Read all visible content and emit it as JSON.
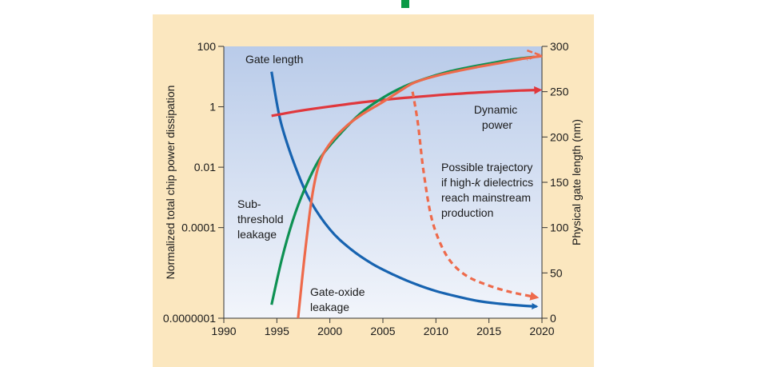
{
  "chart_data": {
    "type": "line",
    "x_ticks": [
      "1990",
      "1995",
      "2000",
      "2005",
      "2010",
      "2015",
      "2020"
    ],
    "xlim": [
      1990,
      2020
    ],
    "y_left": {
      "label": "Normalized total chip power dissipation",
      "scale": "log",
      "lim": [
        1e-07,
        100
      ],
      "ticks": [
        "100",
        "1",
        "0.01",
        "0.0001",
        "0.0000001"
      ]
    },
    "y_right": {
      "label": "Physical gate length (nm)",
      "lim": [
        0,
        300
      ],
      "ticks": [
        "0",
        "50",
        "100",
        "150",
        "200",
        "250",
        "300"
      ]
    },
    "series": [
      {
        "name": "Gate length",
        "axis": "right",
        "color": "#1763b0",
        "x": [
          1994.5,
          1995.3,
          1996.5,
          1998,
          2000,
          2002,
          2004,
          2006,
          2008,
          2010,
          2012,
          2014,
          2016,
          2018,
          2019.5
        ],
        "y": [
          272,
          220,
          175,
          133,
          98,
          76,
          60,
          48,
          38,
          30,
          24,
          19,
          16,
          14,
          13
        ],
        "label_lines": [
          "Gate length"
        ]
      },
      {
        "name": "Dynamic power",
        "axis": "left",
        "color": "#e0373c",
        "x": [
          1994.5,
          1997,
          2000,
          2003,
          2006,
          2009,
          2012,
          2015,
          2018,
          2019.8
        ],
        "y": [
          0.5,
          0.72,
          1.02,
          1.4,
          1.82,
          2.25,
          2.7,
          3.1,
          3.45,
          3.6
        ],
        "label_lines": [
          "Dynamic",
          "power"
        ]
      },
      {
        "name": "Sub-threshold leakage",
        "axis": "left",
        "color": "#0e9153",
        "x": [
          1994.5,
          1995.5,
          1996.5,
          1997.5,
          1999,
          2001,
          2003,
          2005,
          2007,
          2009,
          2011,
          2013,
          2015,
          2017,
          2019.3
        ],
        "y": [
          2.8e-07,
          1e-05,
          0.00017,
          0.0015,
          0.018,
          0.13,
          0.65,
          2.0,
          4.7,
          8.6,
          14,
          20,
          27,
          36,
          45
        ],
        "label_lines": [
          "Sub-",
          "threshold",
          "leakage"
        ]
      },
      {
        "name": "Gate-oxide leakage",
        "axis": "left",
        "color": "#ee6a4b",
        "x": [
          1997,
          1997.6,
          1998.3,
          1999,
          2000,
          2001.5,
          2003,
          2005,
          2006.8,
          2008,
          2010,
          2012,
          2014,
          2016,
          2018,
          2020
        ],
        "y": [
          1e-07,
          1e-05,
          0.00095,
          0.013,
          0.06,
          0.22,
          0.55,
          1.45,
          3.7,
          6.4,
          10.5,
          15.2,
          21,
          28,
          38,
          48
        ],
        "label_lines": [
          "Gate-oxide",
          "leakage"
        ]
      },
      {
        "name": "Possible trajectory if high-k dielectrics reach mainstream production",
        "axis": "right",
        "color": "#ee6a4b",
        "dashed": true,
        "x": [
          2007.8,
          2008.3,
          2008.8,
          2009.5,
          2010.4,
          2011.5,
          2013,
          2015,
          2017,
          2019.5
        ],
        "y": [
          250,
          215,
          165,
          115,
          83,
          61,
          46,
          36,
          29,
          23
        ]
      }
    ],
    "annotation_lines": [
      "Possible trajectory",
      "if high-",
      "k",
      " dielectrics",
      "reach mainstream",
      "production"
    ]
  }
}
